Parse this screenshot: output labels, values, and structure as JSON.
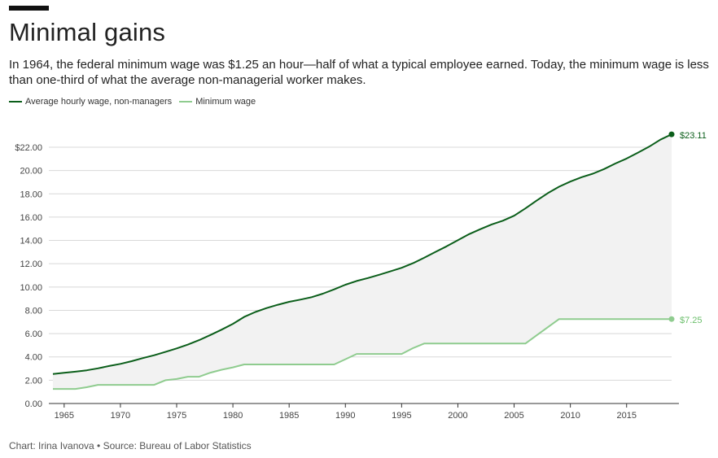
{
  "title": "Minimal gains",
  "subtitle": "In 1964, the federal minimum wage was $1.25 an hour—half of what a typical employee earned. Today, the minimum wage is less than one-third of what the average non-managerial worker makes.",
  "source": "Chart: Irina Ivanova • Source: Bureau of Labor Statistics",
  "colors": {
    "average": "#0b5e1a",
    "minimum": "#8fcc8f",
    "fill": "#f2f2f2",
    "grid": "#d8d8d8"
  },
  "chart_data": {
    "type": "line",
    "x": [
      1964,
      1965,
      1966,
      1967,
      1968,
      1969,
      1970,
      1971,
      1972,
      1973,
      1974,
      1975,
      1976,
      1977,
      1978,
      1979,
      1980,
      1981,
      1982,
      1983,
      1984,
      1985,
      1986,
      1987,
      1988,
      1989,
      1990,
      1991,
      1992,
      1993,
      1994,
      1995,
      1996,
      1997,
      1998,
      1999,
      2000,
      2001,
      2002,
      2003,
      2004,
      2005,
      2006,
      2007,
      2008,
      2009,
      2010,
      2011,
      2012,
      2013,
      2014,
      2015,
      2016,
      2017,
      2018,
      2019
    ],
    "series": [
      {
        "name": "Average hourly wage, non-managers",
        "values": [
          2.53,
          2.63,
          2.73,
          2.85,
          3.02,
          3.22,
          3.4,
          3.63,
          3.9,
          4.14,
          4.43,
          4.73,
          5.06,
          5.44,
          5.88,
          6.34,
          6.84,
          7.43,
          7.86,
          8.19,
          8.48,
          8.73,
          8.92,
          9.13,
          9.43,
          9.8,
          10.2,
          10.52,
          10.77,
          11.05,
          11.34,
          11.65,
          12.04,
          12.51,
          13.01,
          13.49,
          14.02,
          14.54,
          14.97,
          15.37,
          15.69,
          16.12,
          16.75,
          17.42,
          18.06,
          18.61,
          19.05,
          19.43,
          19.73,
          20.13,
          20.6,
          21.03,
          21.53,
          22.05,
          22.65,
          23.11
        ]
      },
      {
        "name": "Minimum wage",
        "values": [
          1.25,
          1.25,
          1.25,
          1.4,
          1.6,
          1.6,
          1.6,
          1.6,
          1.6,
          1.6,
          2.0,
          2.1,
          2.3,
          2.3,
          2.65,
          2.9,
          3.1,
          3.35,
          3.35,
          3.35,
          3.35,
          3.35,
          3.35,
          3.35,
          3.35,
          3.35,
          3.8,
          4.25,
          4.25,
          4.25,
          4.25,
          4.25,
          4.75,
          5.15,
          5.15,
          5.15,
          5.15,
          5.15,
          5.15,
          5.15,
          5.15,
          5.15,
          5.15,
          5.85,
          6.55,
          7.25,
          7.25,
          7.25,
          7.25,
          7.25,
          7.25,
          7.25,
          7.25,
          7.25,
          7.25,
          7.25
        ]
      }
    ],
    "ylim": [
      0,
      22
    ],
    "xlim": [
      1964,
      2019
    ],
    "yticks": [
      0,
      2,
      4,
      6,
      8,
      10,
      12,
      14,
      16,
      18,
      20,
      22
    ],
    "ytick_labels": [
      "0.00",
      "2.00",
      "4.00",
      "6.00",
      "8.00",
      "10.00",
      "12.00",
      "14.00",
      "16.00",
      "18.00",
      "20.00",
      "$22.00"
    ],
    "xticks": [
      1965,
      1970,
      1975,
      1980,
      1985,
      1990,
      1995,
      2000,
      2005,
      2010,
      2015
    ],
    "xtick_labels": [
      "1965",
      "1970",
      "1975",
      "1980",
      "1985",
      "1990",
      "1995",
      "2000",
      "2005",
      "2010",
      "2015"
    ],
    "end_labels": [
      "$23.11",
      "$7.25"
    ],
    "legend_position": "top-left",
    "grid": true
  }
}
